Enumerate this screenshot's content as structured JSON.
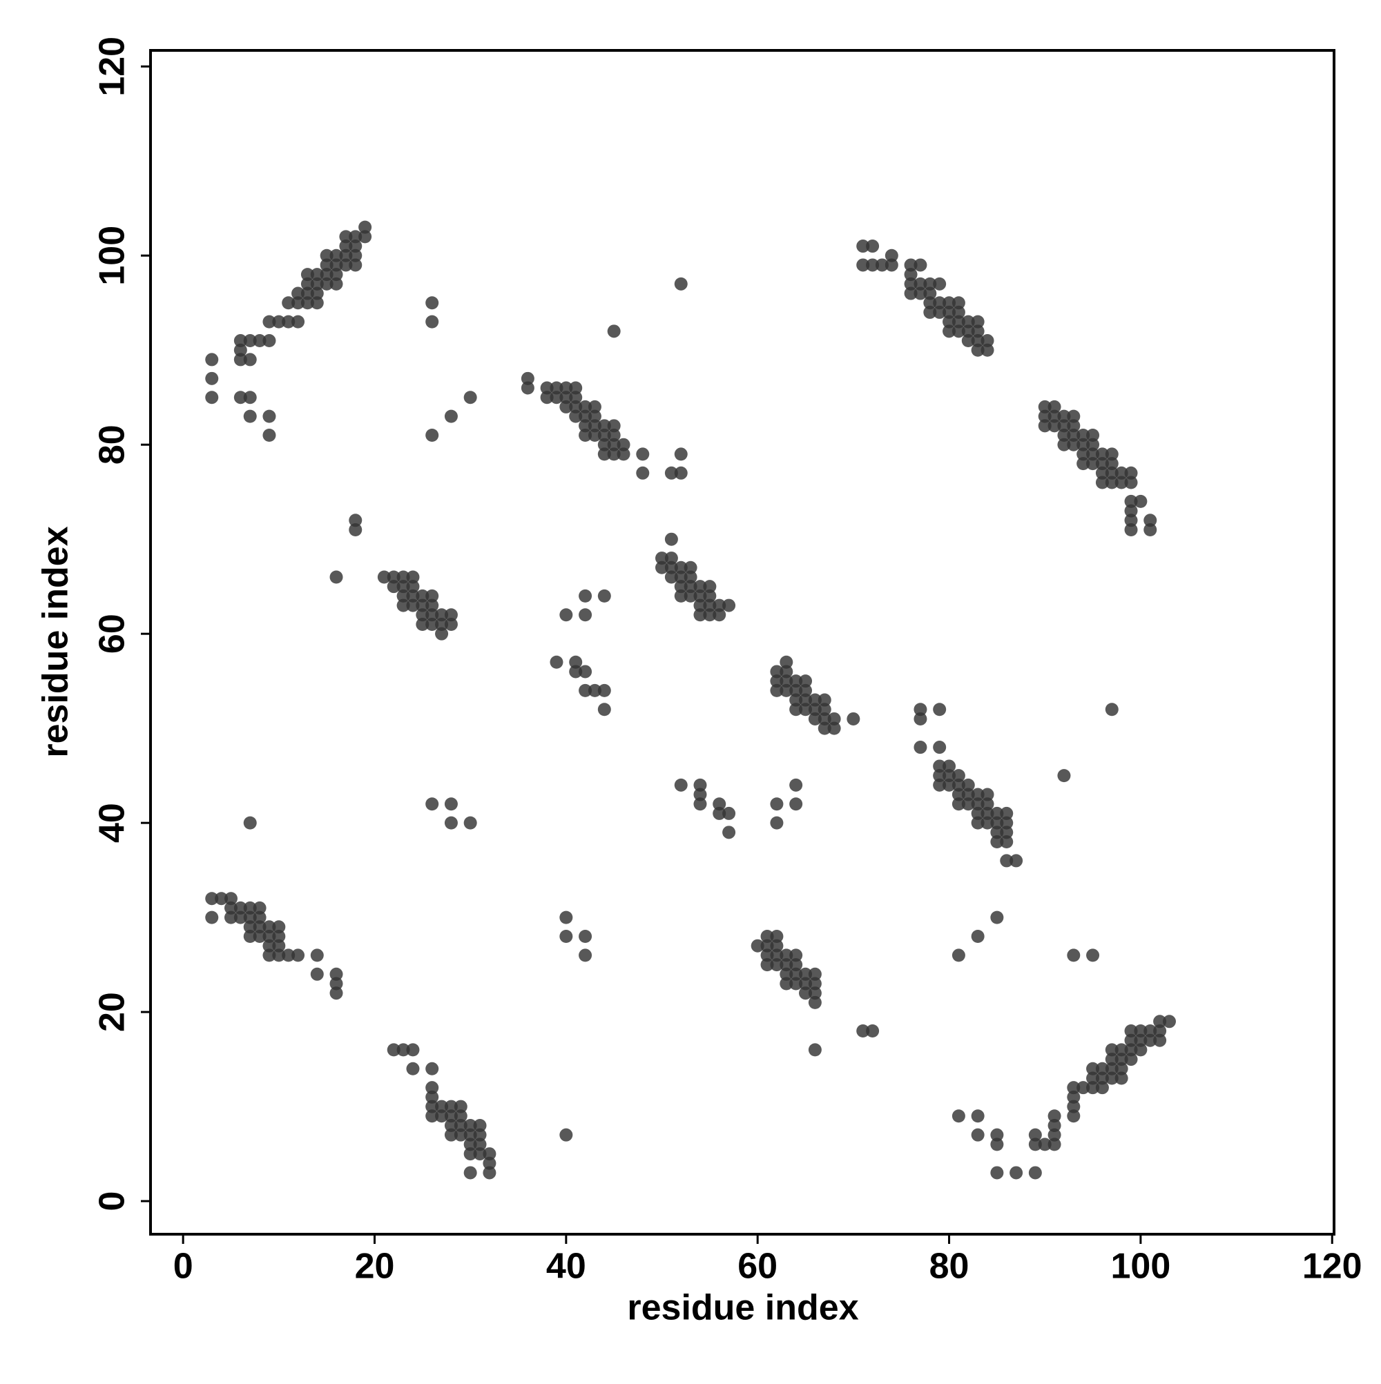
{
  "chart_data": {
    "type": "scatter",
    "xlabel": "residue index",
    "ylabel": "residue index",
    "color": "#333333",
    "xlim": [
      -3.4,
      120.2
    ],
    "ylim": [
      -3.5,
      121.7
    ],
    "xticks": [
      0,
      20,
      40,
      60,
      80,
      100,
      120
    ],
    "yticks": [
      0,
      20,
      40,
      60,
      80,
      100,
      120
    ],
    "x": [
      6,
      6,
      7,
      8,
      9,
      9,
      10,
      11,
      11,
      12,
      12,
      12,
      13,
      13,
      13,
      13,
      14,
      14,
      14,
      14,
      15,
      15,
      15,
      15,
      16,
      16,
      16,
      16,
      17,
      17,
      17,
      17,
      18,
      18,
      18,
      18,
      19,
      19,
      7,
      6,
      3,
      3,
      3,
      6,
      7,
      7,
      9,
      9,
      21,
      22,
      22,
      23,
      23,
      23,
      23,
      24,
      24,
      24,
      24,
      25,
      25,
      25,
      25,
      26,
      26,
      26,
      26,
      27,
      27,
      27,
      28,
      28,
      18,
      18,
      16,
      36,
      36,
      38,
      38,
      39,
      39,
      40,
      40,
      40,
      41,
      41,
      41,
      41,
      42,
      42,
      42,
      42,
      43,
      43,
      43,
      43,
      44,
      44,
      44,
      44,
      45,
      45,
      45,
      45,
      46,
      46,
      48,
      48,
      51,
      52,
      52,
      45,
      52,
      26,
      26,
      26,
      28,
      30,
      50,
      50,
      51,
      51,
      51,
      51,
      52,
      52,
      52,
      52,
      53,
      53,
      53,
      53,
      54,
      54,
      54,
      54,
      55,
      55,
      55,
      55,
      56,
      56,
      57,
      40,
      42,
      42,
      44,
      39,
      41,
      41,
      42,
      42,
      43,
      44,
      44,
      62,
      62,
      62,
      63,
      63,
      63,
      63,
      64,
      64,
      64,
      64,
      65,
      65,
      65,
      65,
      66,
      66,
      66,
      67,
      67,
      67,
      67,
      68,
      68,
      70,
      26,
      28,
      28,
      30,
      7,
      52,
      54,
      54,
      54,
      56,
      56,
      57,
      57,
      62,
      62,
      64,
      64,
      77,
      77,
      79,
      77,
      79,
      79,
      79,
      79,
      80,
      80,
      80,
      81,
      81,
      81,
      81,
      82,
      82,
      82,
      83,
      83,
      83,
      83,
      84,
      84,
      84,
      84,
      85,
      85,
      85,
      85,
      86,
      86,
      86,
      86,
      86,
      87,
      92,
      97,
      71,
      72,
      71,
      72,
      73,
      74,
      74,
      76,
      76,
      76,
      76,
      77,
      77,
      77,
      78,
      78,
      78,
      78,
      79,
      79,
      79,
      80,
      80,
      80,
      80,
      81,
      81,
      81,
      81,
      82,
      82,
      82,
      83,
      83,
      83,
      83,
      84,
      84,
      90,
      90,
      90,
      91,
      91,
      91,
      92,
      92,
      92,
      92,
      93,
      93,
      93,
      93,
      94,
      94,
      94,
      94,
      95,
      95,
      95,
      95,
      96,
      96,
      96,
      96,
      97,
      97,
      97,
      97,
      98,
      98,
      99,
      99,
      99,
      99,
      99,
      99,
      100,
      101,
      101,
      3,
      4,
      5,
      3,
      5,
      5,
      6,
      6,
      7,
      7,
      7,
      7,
      8,
      8,
      8,
      8,
      9,
      9,
      9,
      9,
      10,
      10,
      10,
      10,
      11,
      12,
      14,
      14,
      16,
      16,
      16,
      22,
      23,
      24,
      24,
      26,
      26,
      26,
      26,
      26,
      27,
      27,
      28,
      28,
      28,
      28,
      29,
      29,
      29,
      29,
      30,
      30,
      30,
      30,
      31,
      31,
      31,
      31,
      32,
      32,
      30,
      32,
      40,
      40,
      40,
      42,
      42,
      60,
      61,
      61,
      61,
      61,
      62,
      62,
      62,
      62,
      63,
      63,
      63,
      63,
      64,
      64,
      64,
      64,
      65,
      65,
      65,
      66,
      66,
      66,
      66,
      66,
      71,
      72,
      85,
      83,
      81,
      93,
      95,
      81,
      83,
      83,
      85,
      85,
      85,
      87,
      89,
      89,
      89,
      90,
      91,
      91,
      91,
      91,
      93,
      93,
      93,
      93,
      94,
      95,
      95,
      95,
      96,
      96,
      96,
      97,
      97,
      97,
      97,
      98,
      98,
      98,
      98,
      99,
      99,
      99,
      99,
      100,
      100,
      100,
      101,
      101,
      102,
      102,
      102,
      103
    ],
    "values": [
      89,
      91,
      91,
      91,
      91,
      93,
      93,
      93,
      95,
      93,
      95,
      96,
      95,
      96,
      97,
      98,
      95,
      96,
      97,
      98,
      97,
      98,
      99,
      100,
      97,
      98,
      99,
      100,
      99,
      100,
      101,
      102,
      99,
      100,
      101,
      102,
      102,
      103,
      89,
      90,
      89,
      87,
      85,
      85,
      85,
      83,
      83,
      81,
      66,
      66,
      65,
      66,
      65,
      64,
      63,
      66,
      65,
      64,
      63,
      64,
      63,
      62,
      61,
      64,
      63,
      62,
      61,
      62,
      61,
      60,
      62,
      61,
      72,
      71,
      66,
      87,
      86,
      86,
      85,
      86,
      85,
      86,
      85,
      84,
      86,
      85,
      84,
      83,
      84,
      83,
      82,
      81,
      84,
      83,
      82,
      81,
      82,
      81,
      80,
      79,
      82,
      81,
      80,
      79,
      80,
      79,
      79,
      77,
      77,
      79,
      77,
      92,
      97,
      95,
      93,
      81,
      83,
      85,
      68,
      67,
      70,
      68,
      67,
      66,
      67,
      66,
      65,
      64,
      67,
      66,
      65,
      64,
      65,
      64,
      63,
      62,
      65,
      64,
      63,
      62,
      63,
      62,
      63,
      62,
      64,
      62,
      64,
      57,
      57,
      56,
      56,
      54,
      54,
      54,
      52,
      56,
      55,
      54,
      57,
      56,
      55,
      54,
      55,
      54,
      53,
      52,
      55,
      54,
      53,
      52,
      53,
      52,
      51,
      53,
      52,
      51,
      50,
      51,
      50,
      51,
      42,
      42,
      40,
      40,
      40,
      44,
      44,
      43,
      42,
      42,
      41,
      41,
      39,
      42,
      40,
      44,
      42,
      52,
      51,
      52,
      48,
      48,
      46,
      45,
      44,
      46,
      45,
      44,
      45,
      44,
      43,
      42,
      44,
      43,
      42,
      43,
      42,
      41,
      40,
      43,
      42,
      41,
      40,
      41,
      40,
      39,
      38,
      41,
      40,
      39,
      38,
      36,
      36,
      45,
      52,
      101,
      101,
      99,
      99,
      99,
      100,
      99,
      99,
      98,
      97,
      96,
      99,
      97,
      96,
      97,
      96,
      95,
      94,
      97,
      95,
      94,
      95,
      94,
      93,
      92,
      95,
      94,
      93,
      92,
      93,
      92,
      91,
      93,
      92,
      91,
      90,
      91,
      90,
      84,
      83,
      82,
      84,
      83,
      82,
      83,
      82,
      81,
      80,
      83,
      82,
      81,
      80,
      81,
      80,
      79,
      78,
      81,
      80,
      79,
      78,
      79,
      78,
      77,
      76,
      79,
      78,
      77,
      76,
      77,
      76,
      77,
      76,
      74,
      73,
      72,
      71,
      74,
      72,
      71,
      32,
      32,
      32,
      30,
      31,
      30,
      31,
      30,
      31,
      30,
      29,
      28,
      31,
      30,
      29,
      28,
      29,
      28,
      27,
      26,
      29,
      28,
      27,
      26,
      26,
      26,
      26,
      24,
      24,
      23,
      22,
      16,
      16,
      16,
      14,
      14,
      12,
      11,
      10,
      9,
      10,
      9,
      10,
      9,
      8,
      7,
      10,
      9,
      8,
      7,
      8,
      7,
      6,
      5,
      8,
      7,
      6,
      5,
      5,
      4,
      3,
      3,
      7,
      30,
      28,
      28,
      26,
      27,
      28,
      27,
      26,
      25,
      28,
      27,
      26,
      25,
      26,
      25,
      24,
      23,
      26,
      25,
      24,
      23,
      24,
      23,
      22,
      24,
      23,
      22,
      21,
      16,
      18,
      18,
      30,
      28,
      26,
      26,
      26,
      9,
      9,
      7,
      7,
      6,
      3,
      3,
      3,
      7,
      6,
      6,
      9,
      8,
      7,
      6,
      12,
      11,
      10,
      9,
      12,
      13,
      12,
      14,
      14,
      13,
      12,
      16,
      15,
      14,
      13,
      16,
      15,
      14,
      13,
      18,
      17,
      16,
      15,
      18,
      17,
      16,
      18,
      17,
      19,
      18,
      17,
      19
    ]
  }
}
